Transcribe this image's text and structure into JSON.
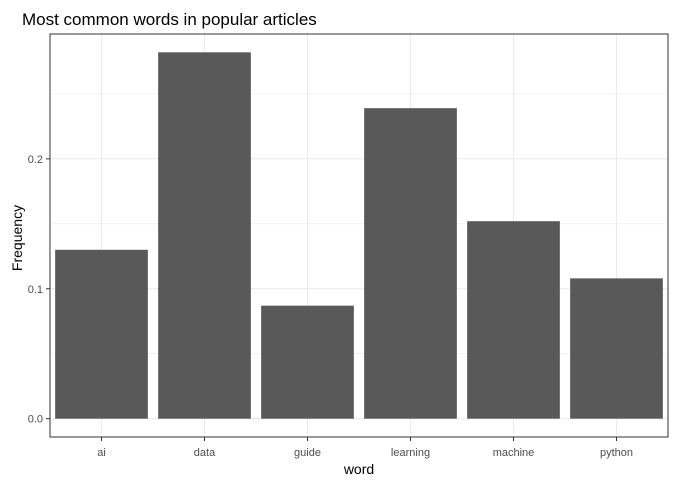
{
  "chart_data": {
    "type": "bar",
    "title": "Most common words in popular articles",
    "xlabel": "word",
    "ylabel": "Frequency",
    "categories": [
      "ai",
      "data",
      "guide",
      "learning",
      "machine",
      "python"
    ],
    "values": [
      0.13,
      0.282,
      0.087,
      0.239,
      0.152,
      0.108
    ],
    "ylim": [
      -0.0141,
      0.2961
    ],
    "yticks": [
      0.0,
      0.1,
      0.2
    ],
    "ytick_labels": [
      "0.0",
      "0.1",
      "0.2"
    ],
    "minor_yticks": [
      0.05,
      0.15,
      0.25
    ],
    "grid": true,
    "bar_color": "#595959",
    "panel_border_color": "#333333",
    "grid_color": "#ebebeb",
    "background_color": "#ffffff"
  }
}
